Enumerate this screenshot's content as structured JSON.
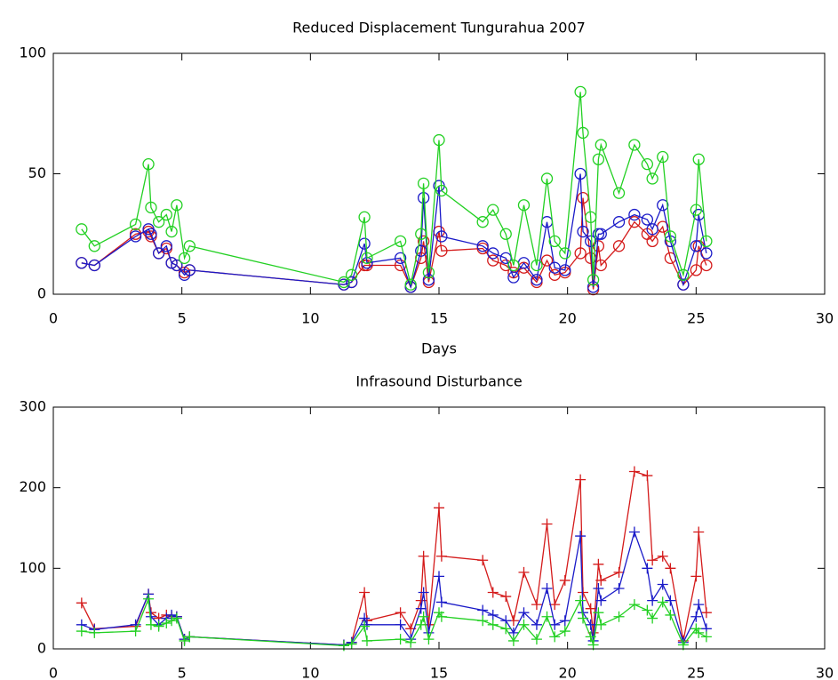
{
  "chart_data": [
    {
      "type": "line",
      "title": "Reduced Displacement Tungurahua 2007",
      "xlabel": "Days",
      "marker": "circle",
      "x": [
        1.1,
        1.6,
        3.2,
        3.7,
        3.8,
        4.1,
        4.4,
        4.6,
        4.8,
        5.1,
        5.3,
        11.3,
        11.6,
        12.1,
        12.2,
        13.5,
        13.9,
        14.3,
        14.4,
        14.6,
        15.0,
        15.1,
        16.7,
        17.1,
        17.6,
        17.9,
        18.3,
        18.8,
        19.2,
        19.5,
        19.9,
        20.5,
        20.6,
        20.9,
        21.0,
        21.2,
        21.3,
        22.0,
        22.6,
        23.1,
        23.3,
        23.7,
        24.0,
        24.5,
        25.0,
        25.1,
        25.4
      ],
      "series": [
        {
          "color": "#d41a1a",
          "values": [
            13,
            12,
            25,
            26,
            24,
            17,
            19,
            13,
            12,
            9,
            10,
            4,
            5,
            12,
            12,
            12,
            3,
            15,
            22,
            5,
            26,
            18,
            19,
            14,
            12,
            9,
            11,
            5,
            14,
            8,
            9,
            17,
            40,
            15,
            2,
            20,
            12,
            20,
            30,
            25,
            22,
            28,
            15,
            4,
            10,
            20,
            12
          ]
        },
        {
          "color": "#1a1ac8",
          "values": [
            13,
            12,
            24,
            27,
            25,
            17,
            20,
            13,
            12,
            8,
            10,
            4,
            5,
            21,
            13,
            15,
            3,
            18,
            40,
            6,
            45,
            24,
            20,
            17,
            15,
            7,
            13,
            6,
            30,
            11,
            10,
            50,
            26,
            22,
            3,
            25,
            25,
            30,
            33,
            31,
            27,
            37,
            22,
            4,
            20,
            33,
            17
          ]
        },
        {
          "color": "#22d022",
          "values": [
            27,
            20,
            29,
            54,
            36,
            30,
            33,
            26,
            37,
            15,
            20,
            5,
            8,
            32,
            15,
            22,
            4,
            25,
            46,
            9,
            64,
            43,
            30,
            35,
            25,
            12,
            37,
            12,
            48,
            22,
            17,
            84,
            67,
            32,
            6,
            56,
            62,
            42,
            62,
            54,
            48,
            57,
            24,
            8,
            35,
            56,
            22
          ]
        }
      ],
      "xlim": [
        0,
        30
      ],
      "ylim": [
        0,
        100
      ],
      "xticks": [
        0,
        5,
        10,
        15,
        20,
        25,
        30
      ],
      "yticks": [
        0,
        50,
        100
      ]
    },
    {
      "type": "line",
      "title": "Infrasound Disturbance",
      "marker": "plus",
      "x": [
        1.1,
        1.6,
        3.2,
        3.7,
        3.8,
        4.1,
        4.4,
        4.6,
        4.8,
        5.1,
        5.3,
        11.3,
        11.6,
        12.1,
        12.2,
        13.5,
        13.9,
        14.3,
        14.4,
        14.6,
        15.0,
        15.1,
        16.7,
        17.1,
        17.6,
        17.9,
        18.3,
        18.8,
        19.2,
        19.5,
        19.9,
        20.5,
        20.6,
        20.9,
        21.0,
        21.2,
        21.3,
        22.0,
        22.6,
        23.1,
        23.3,
        23.7,
        24.0,
        24.5,
        25.0,
        25.1,
        25.4
      ],
      "series": [
        {
          "color": "#d41a1a",
          "values": [
            57,
            25,
            28,
            68,
            45,
            38,
            42,
            40,
            40,
            12,
            15,
            5,
            8,
            70,
            35,
            45,
            25,
            60,
            115,
            30,
            175,
            115,
            110,
            70,
            65,
            35,
            95,
            55,
            155,
            55,
            85,
            210,
            70,
            50,
            20,
            105,
            85,
            95,
            220,
            215,
            110,
            115,
            100,
            10,
            90,
            145,
            45
          ]
        },
        {
          "color": "#1a1ac8",
          "values": [
            30,
            24,
            30,
            68,
            40,
            30,
            38,
            42,
            40,
            12,
            15,
            5,
            8,
            38,
            30,
            30,
            12,
            50,
            70,
            20,
            90,
            58,
            48,
            42,
            35,
            20,
            45,
            30,
            75,
            30,
            35,
            140,
            45,
            30,
            10,
            75,
            60,
            75,
            145,
            100,
            60,
            80,
            60,
            8,
            40,
            55,
            25
          ]
        },
        {
          "color": "#22d022",
          "values": [
            22,
            20,
            22,
            62,
            30,
            28,
            32,
            35,
            38,
            10,
            15,
            4,
            6,
            28,
            10,
            12,
            8,
            30,
            40,
            12,
            45,
            40,
            35,
            30,
            25,
            10,
            30,
            12,
            40,
            15,
            22,
            60,
            38,
            15,
            5,
            45,
            30,
            40,
            55,
            48,
            38,
            58,
            42,
            5,
            25,
            20,
            15
          ]
        }
      ],
      "xlim": [
        0,
        30
      ],
      "ylim": [
        0,
        300
      ],
      "xticks": [
        0,
        5,
        10,
        15,
        20,
        25,
        30
      ],
      "yticks": [
        0,
        100,
        200,
        300
      ]
    }
  ]
}
